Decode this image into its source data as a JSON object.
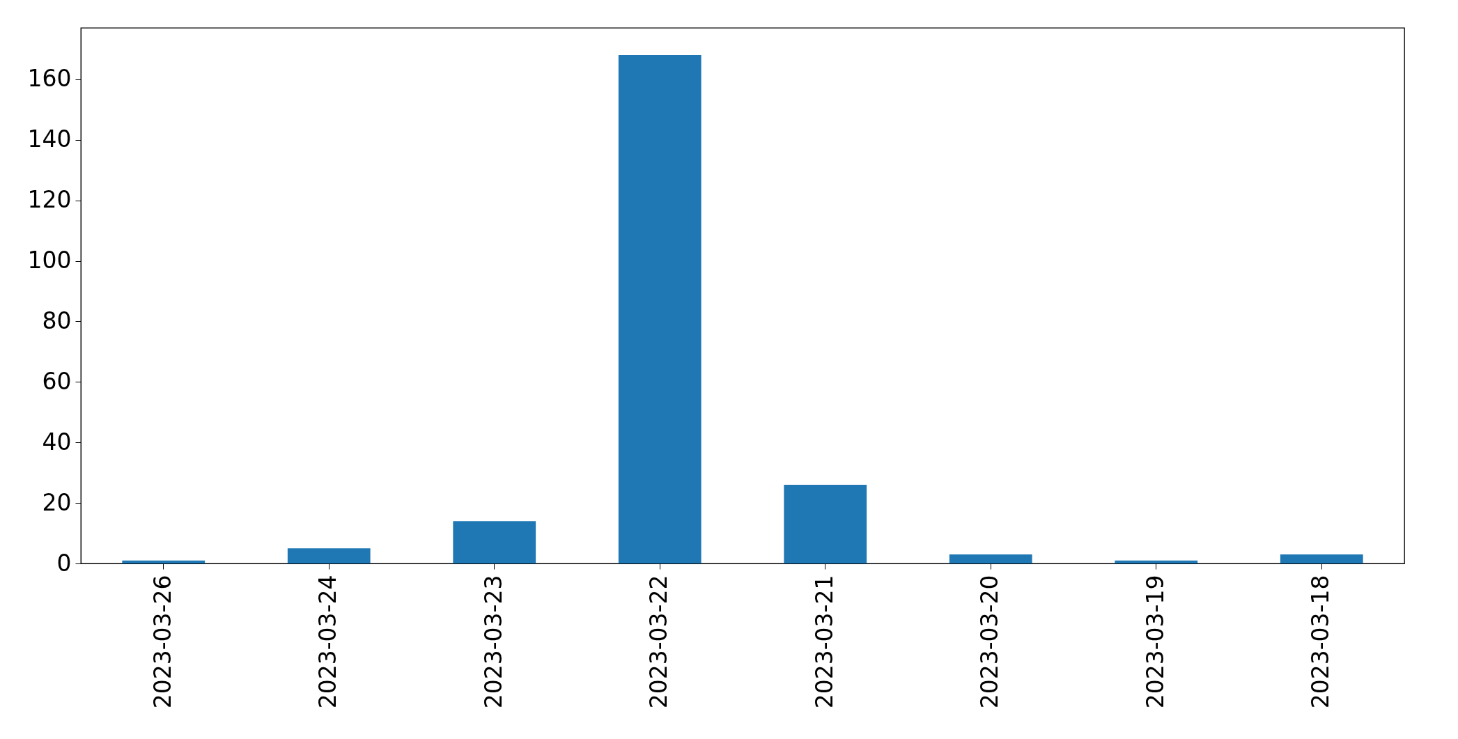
{
  "chart_data": {
    "type": "bar",
    "categories": [
      "2023-03-26",
      "2023-03-24",
      "2023-03-23",
      "2023-03-22",
      "2023-03-21",
      "2023-03-20",
      "2023-03-19",
      "2023-03-18"
    ],
    "values": [
      1,
      5,
      14,
      168,
      26,
      3,
      1,
      3
    ],
    "color": "#1f77b4",
    "ylim": [
      0,
      177
    ],
    "yticks": [
      0,
      20,
      40,
      60,
      80,
      100,
      120,
      140,
      160
    ],
    "grid": false
  }
}
